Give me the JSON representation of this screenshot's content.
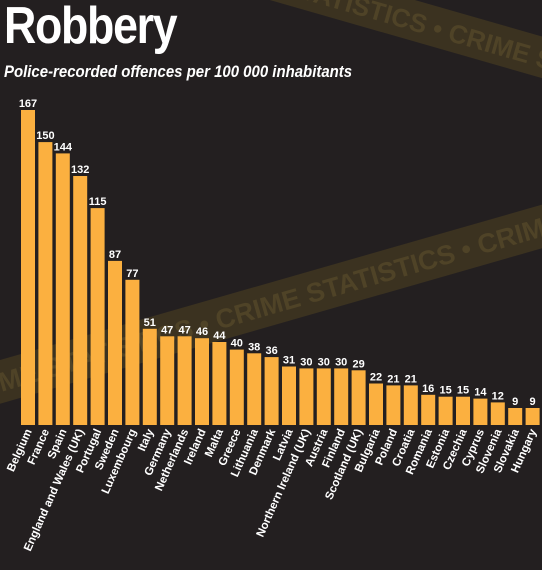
{
  "title": "Robbery",
  "subtitle": "Police-recorded offences per 100 000 inhabitants",
  "watermark_text": "CRIME STATISTICS • CRIME STATISTICS • CRIME STATISTICS • CRIME STATISTICS •",
  "colors": {
    "background": "#231f20",
    "bar": "#fbb040",
    "tape": "#3b3220",
    "tape_text": "#4f4327",
    "text": "#ffffff"
  },
  "chart_data": {
    "type": "bar",
    "title": "Robbery",
    "subtitle": "Police-recorded offences per 100 000 inhabitants",
    "categories": [
      "Belgium",
      "France",
      "Spain",
      "England and Wales (UK)",
      "Portugal",
      "Sweden",
      "Luxembourg",
      "Italy",
      "Germany",
      "Netherlands",
      "Ireland",
      "Malta",
      "Greece",
      "Lithuania",
      "Denmark",
      "Latvia",
      "Northern Ireland (UK)",
      "Austria",
      "Finland",
      "Scotland (UK)",
      "Bulgaria",
      "Poland",
      "Croatia",
      "Romania",
      "Estonia",
      "Czechia",
      "Cyprus",
      "Slovenia",
      "Slovakia",
      "Hungary"
    ],
    "values": [
      167,
      150,
      144,
      132,
      115,
      87,
      77,
      51,
      47,
      47,
      46,
      44,
      40,
      38,
      36,
      31,
      30,
      30,
      30,
      29,
      22,
      21,
      21,
      16,
      15,
      15,
      14,
      12,
      9,
      9
    ],
    "ylim": [
      0,
      167
    ],
    "grid": false,
    "legend": "none",
    "data_labels": true
  }
}
